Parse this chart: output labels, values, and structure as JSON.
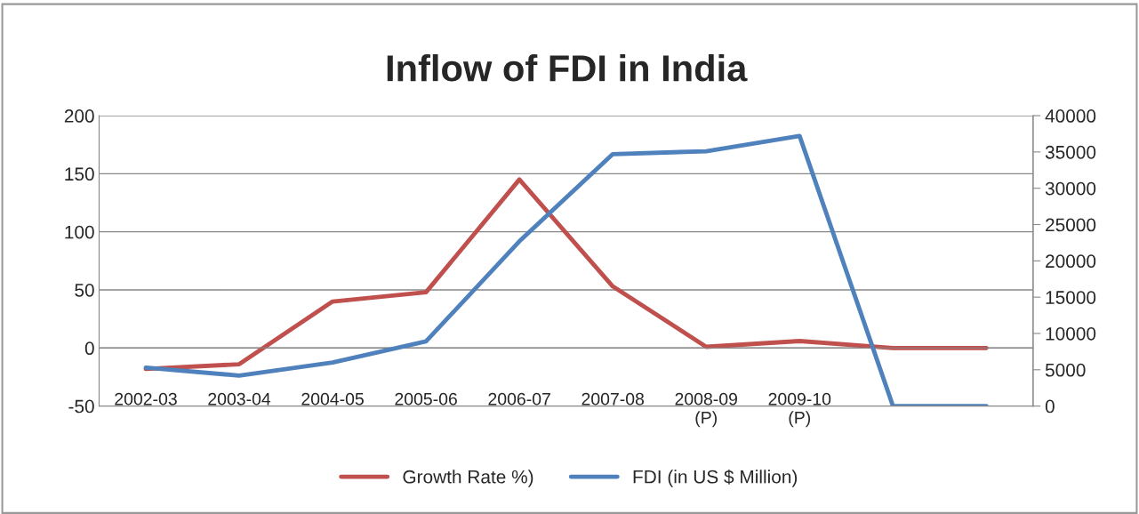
{
  "chart_data": {
    "type": "line",
    "title": "Inflow of FDI in India",
    "categories": [
      "2002-03",
      "2003-04",
      "2004-05",
      "2005-06",
      "2006-07",
      "2007-08",
      "2008-09\n(P)",
      "2009-10\n(P)",
      null,
      null
    ],
    "series": [
      {
        "name": "Growth Rate %)",
        "color": "#c0504d",
        "values": [
          -18,
          -14,
          40,
          48,
          145,
          53,
          1,
          6,
          0,
          0
        ]
      },
      {
        "name": "FDI (in US $ Million)",
        "color": "#4f81bd",
        "axis": "y2",
        "values": [
          5300,
          4200,
          6000,
          8900,
          22700,
          34700,
          35100,
          37200,
          0,
          0
        ]
      }
    ],
    "ylim": [
      -50,
      200
    ],
    "yticks": [
      -50,
      0,
      50,
      100,
      150,
      200
    ],
    "y2lim": [
      0,
      40000
    ],
    "y2ticks": [
      0,
      5000,
      10000,
      15000,
      20000,
      25000,
      30000,
      35000,
      40000
    ],
    "grid": "y",
    "legend": "bottom",
    "marker": "none",
    "line_style": "solid"
  }
}
